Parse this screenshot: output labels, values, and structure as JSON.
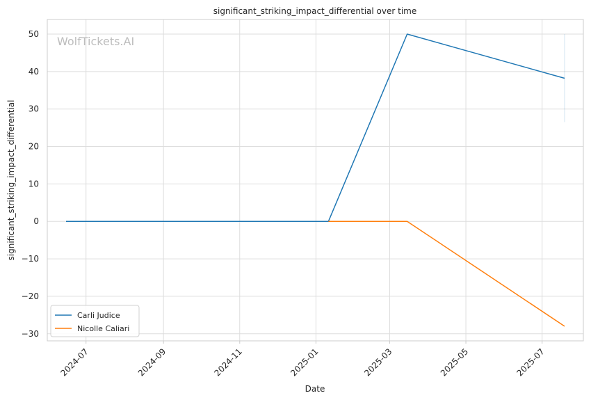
{
  "chart_data": {
    "type": "line",
    "title": "significant_striking_impact_differential over time",
    "xlabel": "Date",
    "ylabel": "significant_striking_impact_differential",
    "watermark": "WolfTickets.AI",
    "x_ticks": [
      "2024-07",
      "2024-09",
      "2024-11",
      "2025-01",
      "2025-03",
      "2025-05",
      "2025-07"
    ],
    "y_ticks": [
      50,
      40,
      30,
      20,
      10,
      0,
      -10,
      -20,
      -30
    ],
    "xlim": [
      "2024-05-31",
      "2025-08-03"
    ],
    "ylim": [
      -31.9,
      53.9
    ],
    "grid": true,
    "legend_position": "lower-left",
    "series": [
      {
        "name": "Carli Judice",
        "color": "#1f77b4",
        "x": [
          "2024-06-15",
          "2025-01-11",
          "2025-03-15",
          "2025-07-19"
        ],
        "y": [
          0,
          0,
          50,
          38.2
        ]
      },
      {
        "name": "Nicolle Caliari",
        "color": "#ff7f0e",
        "x": [
          "2025-01-11",
          "2025-03-15",
          "2025-07-19"
        ],
        "y": [
          0,
          0,
          -28
        ]
      }
    ],
    "error_band": {
      "x": "2025-07-19",
      "y_low": 26.5,
      "y_high": 50,
      "color": "#1f77b4"
    }
  }
}
